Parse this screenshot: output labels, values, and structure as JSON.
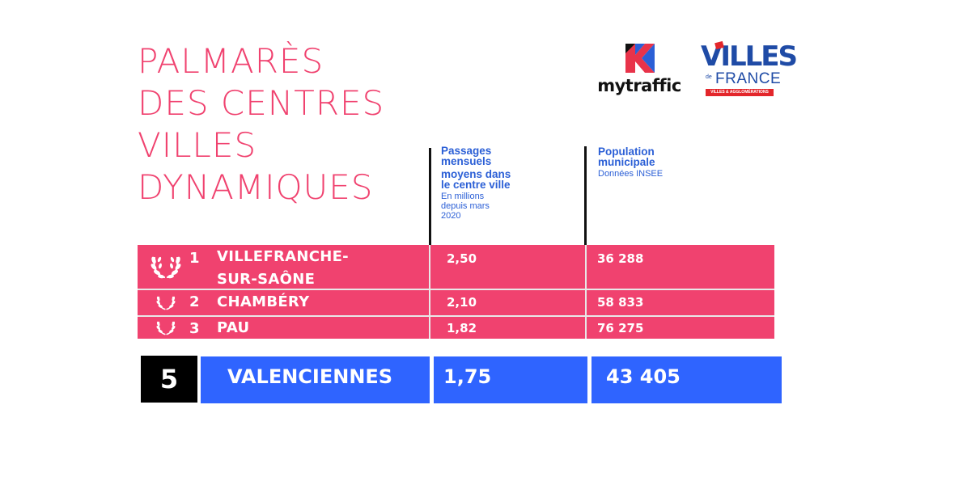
{
  "title": {
    "lines": [
      "PALMARÈS",
      "DES CENTRES",
      "VILLES",
      "DYNAMIQUES"
    ]
  },
  "logos": {
    "mytraffic": {
      "text": "mytraffic"
    },
    "villes_de_france": {
      "villes": "VILLES",
      "de": "de",
      "france": "FRANCE",
      "strip": "VILLES & AGGLOMÉRATIONS"
    }
  },
  "columns": {
    "passages": {
      "title_lines": [
        "Passages",
        "mensuels",
        "moyens dans",
        "le centre ville"
      ],
      "sub_lines": [
        "En millions",
        "depuis mars",
        "2020"
      ]
    },
    "population": {
      "title_lines": [
        "Population",
        "municipale"
      ],
      "sub_lines": [
        "Données INSEE"
      ]
    }
  },
  "colors": {
    "pink": "#f0426f",
    "blue": "#2f64ff",
    "header_blue": "#2b5fd6",
    "black": "#000000"
  },
  "ranking": [
    {
      "rank": "1",
      "city_lines": [
        "VILLEFRANCHE-",
        "SUR-SAÔNE"
      ],
      "passages": "2,50",
      "population": "36 288",
      "icon": "laurel-icon"
    },
    {
      "rank": "2",
      "city_lines": [
        "CHAMBÉRY"
      ],
      "passages": "2,10",
      "population": "58 833",
      "icon": "laurel-icon"
    },
    {
      "rank": "3",
      "city_lines": [
        "PAU"
      ],
      "passages": "1,82",
      "population": "76 275",
      "icon": "laurel-icon"
    }
  ],
  "highlight": {
    "rank": "5",
    "city": "VALENCIENNES",
    "passages": "1,75",
    "population": "43 405"
  }
}
